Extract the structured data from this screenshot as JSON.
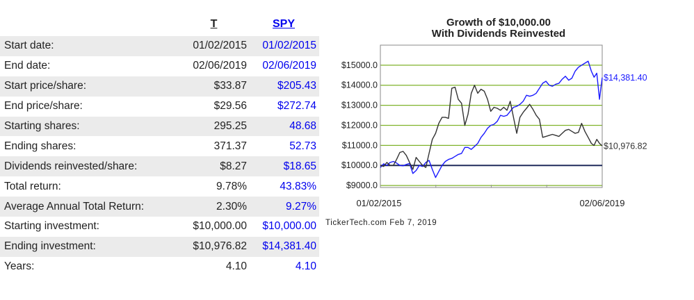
{
  "table": {
    "headers": {
      "t": "T",
      "spy": "SPY"
    },
    "rows": [
      {
        "label": "Start date:",
        "t": "01/02/2015",
        "spy": "01/02/2015"
      },
      {
        "label": "End date:",
        "t": "02/06/2019",
        "spy": "02/06/2019"
      },
      {
        "label": "Start price/share:",
        "t": "$33.87",
        "spy": "$205.43"
      },
      {
        "label": "End price/share:",
        "t": "$29.56",
        "spy": "$272.74"
      },
      {
        "label": "Starting shares:",
        "t": "295.25",
        "spy": "48.68"
      },
      {
        "label": "Ending shares:",
        "t": "371.37",
        "spy": "52.73"
      },
      {
        "label": "Dividends reinvested/share:",
        "t": "$8.27",
        "spy": "$18.65"
      },
      {
        "label": "Total return:",
        "t": "9.78%",
        "spy": "43.83%"
      },
      {
        "label": "Average Annual Total Return:",
        "t": "2.30%",
        "spy": "9.27%"
      },
      {
        "label": "Starting investment:",
        "t": "$10,000.00",
        "spy": "$10,000.00"
      },
      {
        "label": "Ending investment:",
        "t": "$10,976.82",
        "spy": "$14,381.40"
      },
      {
        "label": "Years:",
        "t": "4.10",
        "spy": "4.10"
      }
    ]
  },
  "chart_data": {
    "type": "line",
    "title": "Growth of $10,000.00",
    "subtitle": "With Dividends Reinvested",
    "xlabel": "",
    "ylabel": "",
    "x_tick_labels": [
      "01/02/2015",
      "02/06/2019"
    ],
    "y_ticks": [
      9000,
      10000,
      11000,
      12000,
      13000,
      14000,
      15000
    ],
    "y_tick_labels": [
      "$9000.0",
      "$10000.0",
      "$11000.0",
      "$12000.0",
      "$13000.0",
      "$14000.0",
      "$15000.0"
    ],
    "ylim": [
      8900,
      16000
    ],
    "xlim": [
      2015.0,
      2019.1
    ],
    "baseline": 10000,
    "grid": true,
    "end_labels": [
      "$14,381.40",
      "$10,976.82"
    ],
    "series": [
      {
        "color": "#1a1aff",
        "x": [
          2015.0,
          2015.06,
          2015.12,
          2015.18,
          2015.24,
          2015.3,
          2015.36,
          2015.42,
          2015.48,
          2015.54,
          2015.6,
          2015.66,
          2015.72,
          2015.78,
          2015.84,
          2015.9,
          2015.96,
          2016.02,
          2016.08,
          2016.14,
          2016.2,
          2016.26,
          2016.32,
          2016.38,
          2016.44,
          2016.5,
          2016.56,
          2016.62,
          2016.68,
          2016.74,
          2016.8,
          2016.86,
          2016.92,
          2016.98,
          2017.04,
          2017.1,
          2017.16,
          2017.22,
          2017.28,
          2017.34,
          2017.4,
          2017.46,
          2017.52,
          2017.58,
          2017.64,
          2017.7,
          2017.76,
          2017.82,
          2017.88,
          2017.94,
          2018.0,
          2018.06,
          2018.12,
          2018.18,
          2018.24,
          2018.3,
          2018.36,
          2018.42,
          2018.48,
          2018.54,
          2018.6,
          2018.66,
          2018.72,
          2018.78,
          2018.84,
          2018.9,
          2018.95,
          2019.0,
          2019.05,
          2019.1
        ],
        "values": [
          9900,
          10080,
          10000,
          10150,
          10200,
          10120,
          10000,
          9980,
          10050,
          10100,
          9600,
          9750,
          10000,
          9950,
          10150,
          10250,
          9800,
          9400,
          9700,
          10000,
          10200,
          10300,
          10350,
          10450,
          10550,
          10600,
          10900,
          10900,
          10800,
          10950,
          11100,
          11400,
          11600,
          11850,
          12000,
          12050,
          12200,
          12500,
          12450,
          12500,
          12700,
          12900,
          12950,
          13050,
          13200,
          13500,
          13450,
          13500,
          13600,
          13850,
          14100,
          14200,
          14000,
          13950,
          14050,
          14100,
          14300,
          14450,
          14250,
          14350,
          14700,
          14900,
          15000,
          15100,
          15200,
          14700,
          14400,
          14600,
          13300,
          14381.4
        ]
      },
      {
        "color": "#333333",
        "x": [
          2015.0,
          2015.06,
          2015.12,
          2015.18,
          2015.24,
          2015.3,
          2015.36,
          2015.42,
          2015.48,
          2015.54,
          2015.6,
          2015.66,
          2015.72,
          2015.78,
          2015.84,
          2015.9,
          2015.96,
          2016.02,
          2016.08,
          2016.14,
          2016.2,
          2016.26,
          2016.32,
          2016.38,
          2016.44,
          2016.5,
          2016.56,
          2016.62,
          2016.68,
          2016.74,
          2016.8,
          2016.86,
          2016.92,
          2016.98,
          2017.04,
          2017.1,
          2017.16,
          2017.22,
          2017.28,
          2017.34,
          2017.4,
          2017.46,
          2017.52,
          2017.58,
          2017.64,
          2017.7,
          2017.76,
          2017.82,
          2017.88,
          2017.94,
          2018.0,
          2018.06,
          2018.12,
          2018.18,
          2018.24,
          2018.3,
          2018.36,
          2018.42,
          2018.48,
          2018.54,
          2018.6,
          2018.66,
          2018.72,
          2018.78,
          2018.84,
          2018.9,
          2018.95,
          2019.0,
          2019.05,
          2019.1
        ],
        "values": [
          10000,
          9950,
          10150,
          10000,
          10000,
          10300,
          10650,
          10700,
          10500,
          10150,
          9800,
          10400,
          10200,
          10000,
          9900,
          10600,
          11300,
          11600,
          12100,
          12400,
          12400,
          12350,
          13850,
          13900,
          13300,
          13100,
          12000,
          12550,
          13600,
          14000,
          13600,
          13800,
          13700,
          13300,
          12700,
          12900,
          12850,
          12750,
          12900,
          12750,
          13200,
          12400,
          11600,
          12400,
          12650,
          12850,
          13050,
          12800,
          12500,
          12300,
          11400,
          11450,
          11500,
          11550,
          11500,
          11450,
          11600,
          11750,
          11800,
          11700,
          11600,
          11650,
          12100,
          11700,
          11400,
          11100,
          11000,
          11300,
          11100,
          10976.82
        ]
      }
    ]
  },
  "footer": {
    "credit": "TickerTech.com  Feb 7, 2019"
  },
  "colors": {
    "grid": "#7fb22a",
    "baseline": "#1f2a5a",
    "plot_border": "#888888",
    "spy": "#1a1aff",
    "t": "#333333"
  }
}
